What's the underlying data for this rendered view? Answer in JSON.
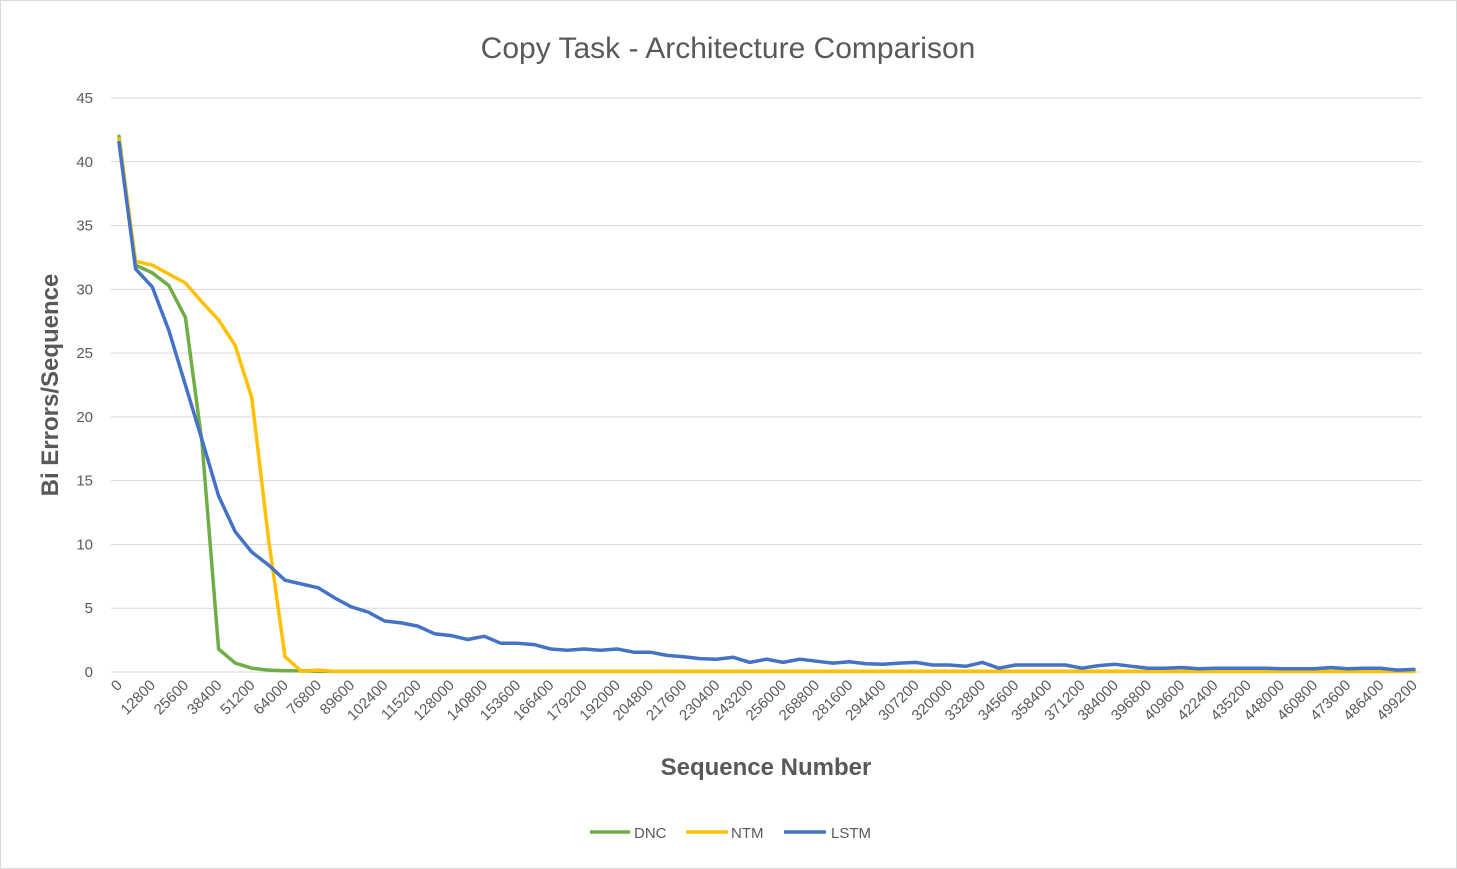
{
  "chart_data": {
    "type": "line",
    "title": "Copy Task - Architecture Comparison",
    "xlabel": "Sequence Number",
    "ylabel": "Bi Errors/Sequence",
    "ylim": [
      0,
      45
    ],
    "yticks": [
      "0",
      "5",
      "10",
      "15",
      "20",
      "25",
      "30",
      "35",
      "40",
      "45"
    ],
    "x_step": 6400,
    "x_count": 79,
    "xtick_labels": [
      "0",
      "12800",
      "25600",
      "38400",
      "51200",
      "64000",
      "76800",
      "89600",
      "102400",
      "115200",
      "128000",
      "140800",
      "153600",
      "166400",
      "179200",
      "192000",
      "204800",
      "217600",
      "230400",
      "243200",
      "256000",
      "268800",
      "281600",
      "294400",
      "307200",
      "320000",
      "332800",
      "345600",
      "358400",
      "371200",
      "384000",
      "396800",
      "409600",
      "422400",
      "435200",
      "448000",
      "460800",
      "473600",
      "486400",
      "499200"
    ],
    "grid": true,
    "legend_position": "bottom",
    "series": [
      {
        "name": "DNC",
        "color": "#70ad47",
        "values": [
          42.0,
          31.9,
          31.3,
          30.3,
          27.8,
          18.0,
          1.8,
          0.7,
          0.3,
          0.15,
          0.1,
          0.1,
          0.05,
          0.05,
          0.05,
          0.05,
          0.05,
          0.05,
          0.05,
          0.05,
          0.05,
          0.05,
          0.05,
          0.05,
          0.05,
          0.05,
          0.05,
          0.05,
          0.05,
          0.05,
          0.05,
          0.05,
          0.05,
          0.05,
          0.05,
          0.05,
          0.05,
          0.05,
          0.05,
          0.05,
          0.05,
          0.05,
          0.05,
          0.05,
          0.05,
          0.05,
          0.05,
          0.05,
          0.05,
          0.05,
          0.05,
          0.05,
          0.05,
          0.05,
          0.05,
          0.05,
          0.05,
          0.05,
          0.05,
          0.05,
          0.05,
          0.05,
          0.05,
          0.05,
          0.05,
          0.05,
          0.05,
          0.05,
          0.05,
          0.05,
          0.05,
          0.05,
          0.05,
          0.05,
          0.05,
          0.05,
          0.05,
          0.05,
          0.05
        ]
      },
      {
        "name": "NTM",
        "color": "#ffc000",
        "values": [
          41.8,
          32.2,
          31.9,
          31.2,
          30.5,
          29.0,
          27.6,
          25.6,
          21.5,
          10.5,
          1.2,
          0.05,
          0.15,
          0.05,
          0.05,
          0.05,
          0.05,
          0.05,
          0.05,
          0.05,
          0.05,
          0.05,
          0.05,
          0.05,
          0.05,
          0.05,
          0.05,
          0.05,
          0.05,
          0.05,
          0.05,
          0.05,
          0.05,
          0.05,
          0.05,
          0.05,
          0.05,
          0.05,
          0.05,
          0.05,
          0.05,
          0.05,
          0.05,
          0.05,
          0.05,
          0.05,
          0.05,
          0.05,
          0.05,
          0.05,
          0.05,
          0.05,
          0.05,
          0.05,
          0.05,
          0.05,
          0.05,
          0.05,
          0.05,
          0.05,
          0.05,
          0.05,
          0.05,
          0.05,
          0.05,
          0.05,
          0.05,
          0.05,
          0.05,
          0.05,
          0.05,
          0.05,
          0.05,
          0.05,
          0.05,
          0.05,
          0.05,
          0.05,
          0.05
        ]
      },
      {
        "name": "LSTM",
        "color": "#4472c4",
        "values": [
          41.5,
          31.6,
          30.2,
          26.8,
          22.5,
          18.2,
          13.8,
          11.0,
          9.4,
          8.4,
          7.2,
          6.9,
          6.6,
          5.8,
          5.1,
          4.7,
          4.0,
          3.85,
          3.6,
          3.0,
          2.85,
          2.55,
          2.8,
          2.25,
          2.25,
          2.15,
          1.8,
          1.7,
          1.8,
          1.7,
          1.8,
          1.55,
          1.55,
          1.3,
          1.2,
          1.05,
          1.0,
          1.15,
          0.75,
          1.0,
          0.75,
          1.0,
          0.85,
          0.7,
          0.8,
          0.65,
          0.6,
          0.7,
          0.75,
          0.55,
          0.55,
          0.45,
          0.75,
          0.3,
          0.55,
          0.55,
          0.55,
          0.55,
          0.3,
          0.5,
          0.6,
          0.45,
          0.3,
          0.3,
          0.35,
          0.25,
          0.3,
          0.3,
          0.3,
          0.3,
          0.25,
          0.25,
          0.25,
          0.35,
          0.25,
          0.3,
          0.3,
          0.15,
          0.2
        ]
      }
    ]
  }
}
